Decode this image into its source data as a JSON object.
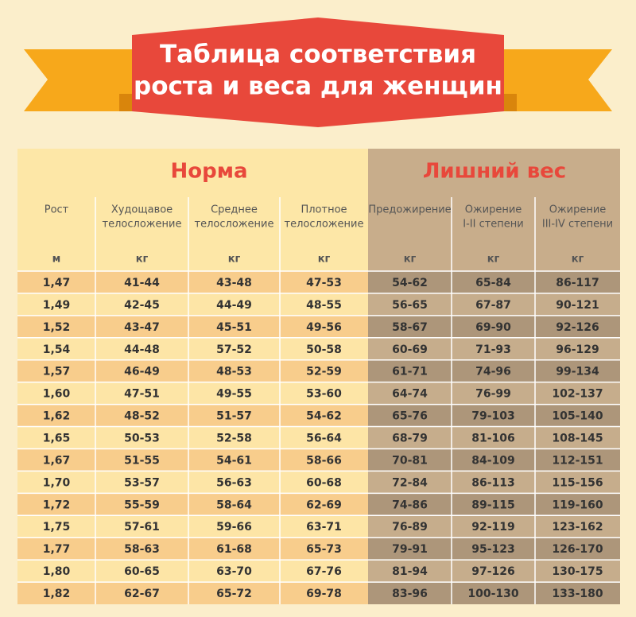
{
  "header": {
    "title_lines": [
      "Таблица соответствия",
      "роста и веса для женщин"
    ]
  },
  "table": {
    "groups": [
      "Норма",
      "Лишний вес"
    ],
    "columns": [
      {
        "name": [
          "Рост"
        ],
        "unit": "м"
      },
      {
        "name": [
          "Худощавое",
          "телосложение"
        ],
        "unit": "кг"
      },
      {
        "name": [
          "Среднее",
          "телосложение"
        ],
        "unit": "кг"
      },
      {
        "name": [
          "Плотное",
          "телосложение"
        ],
        "unit": "кг"
      },
      {
        "name": [
          "Предожирение"
        ],
        "unit": "кг"
      },
      {
        "name": [
          "Ожирение",
          "I-II степени"
        ],
        "unit": "кг"
      },
      {
        "name": [
          "Ожирение",
          "III-IV степени"
        ],
        "unit": "кг"
      }
    ],
    "rows": [
      [
        "1,47",
        "41-44",
        "43-48",
        "47-53",
        "54-62",
        "65-84",
        "86-117"
      ],
      [
        "1,49",
        "42-45",
        "44-49",
        "48-55",
        "56-65",
        "67-87",
        "90-121"
      ],
      [
        "1,52",
        "43-47",
        "45-51",
        "49-56",
        "58-67",
        "69-90",
        "92-126"
      ],
      [
        "1,54",
        "44-48",
        "57-52",
        "50-58",
        "60-69",
        "71-93",
        "96-129"
      ],
      [
        "1,57",
        "46-49",
        "48-53",
        "52-59",
        "61-71",
        "74-96",
        "99-134"
      ],
      [
        "1,60",
        "47-51",
        "49-55",
        "53-60",
        "64-74",
        "76-99",
        "102-137"
      ],
      [
        "1,62",
        "48-52",
        "51-57",
        "54-62",
        "65-76",
        "79-103",
        "105-140"
      ],
      [
        "1,65",
        "50-53",
        "52-58",
        "56-64",
        "68-79",
        "81-106",
        "108-145"
      ],
      [
        "1,67",
        "51-55",
        "54-61",
        "58-66",
        "70-81",
        "84-109",
        "112-151"
      ],
      [
        "1,70",
        "53-57",
        "56-63",
        "60-68",
        "72-84",
        "86-113",
        "115-156"
      ],
      [
        "1,72",
        "55-59",
        "58-64",
        "62-69",
        "74-86",
        "89-115",
        "119-160"
      ],
      [
        "1,75",
        "57-61",
        "59-66",
        "63-71",
        "76-89",
        "92-119",
        "123-162"
      ],
      [
        "1,77",
        "58-63",
        "61-68",
        "65-73",
        "79-91",
        "95-123",
        "126-170"
      ],
      [
        "1,80",
        "60-65",
        "63-70",
        "67-76",
        "81-94",
        "97-126",
        "130-175"
      ],
      [
        "1,82",
        "62-67",
        "65-72",
        "69-78",
        "83-96",
        "100-130",
        "133-180"
      ]
    ]
  }
}
